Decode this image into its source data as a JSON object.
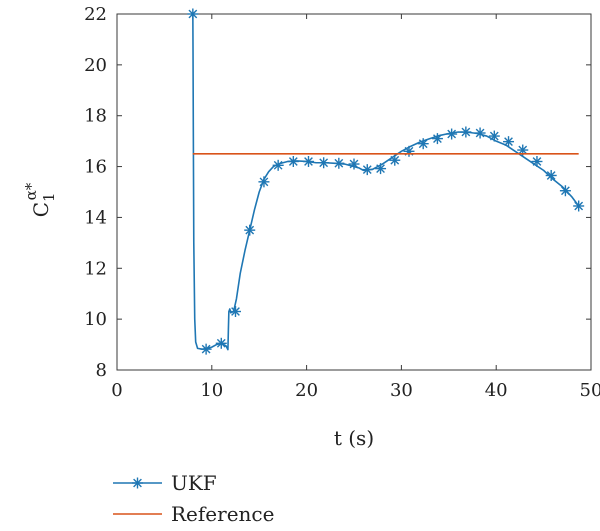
{
  "chart_data": {
    "type": "line",
    "xlabel": "t (s)",
    "ylabel": "C",
    "ylabel_subscript": "1",
    "ylabel_superscript": "α*",
    "xlim": [
      0,
      50
    ],
    "ylim": [
      8,
      22
    ],
    "xticks": [
      0,
      10,
      20,
      30,
      40,
      50
    ],
    "yticks": [
      8,
      10,
      12,
      14,
      16,
      18,
      20,
      22
    ],
    "grid": false,
    "legend_position": "bottom-left, below plot",
    "series": [
      {
        "name": "UKF",
        "color": "#1f77b4",
        "marker": "asterisk",
        "x": [
          8.0,
          8.02,
          8.05,
          8.1,
          8.2,
          8.3,
          8.5,
          9.0,
          9.5,
          10.0,
          10.5,
          11.0,
          11.5,
          11.7,
          11.75,
          11.8,
          11.9,
          12.0,
          12.3,
          12.6,
          13.0,
          13.5,
          14.0,
          14.5,
          15.0,
          15.5,
          16.0,
          16.5,
          17.0,
          18.0,
          19.0,
          20.0,
          21.0,
          22.0,
          23.0,
          24.0,
          25.0,
          25.5,
          26.0,
          26.5,
          27.0,
          27.5,
          28.0,
          29.0,
          30.0,
          31.0,
          32.0,
          33.0,
          34.0,
          35.0,
          36.0,
          37.0,
          38.0,
          39.0,
          40.0,
          41.0,
          42.0,
          43.0,
          44.0,
          45.0,
          46.0,
          47.0,
          48.0,
          48.7
        ],
        "values": [
          22.0,
          20.5,
          17.5,
          13.0,
          10.0,
          9.1,
          8.85,
          8.82,
          8.85,
          8.9,
          9.0,
          9.05,
          8.95,
          8.8,
          9.6,
          10.3,
          10.4,
          10.25,
          10.3,
          10.8,
          11.8,
          12.7,
          13.5,
          14.3,
          15.0,
          15.5,
          15.8,
          16.0,
          16.1,
          16.2,
          16.22,
          16.2,
          16.15,
          16.15,
          16.13,
          16.1,
          16.0,
          15.95,
          15.85,
          15.87,
          15.9,
          16.0,
          16.1,
          16.35,
          16.6,
          16.8,
          16.97,
          17.1,
          17.22,
          17.3,
          17.36,
          17.35,
          17.3,
          17.2,
          17.0,
          16.85,
          16.6,
          16.35,
          16.1,
          15.85,
          15.5,
          15.2,
          14.8,
          14.45
        ],
        "marker_x": [
          8.0,
          9.4,
          11.0,
          12.5,
          14.0,
          15.5,
          17.0,
          18.6,
          20.2,
          21.8,
          23.4,
          25.0,
          26.4,
          27.8,
          29.3,
          30.8,
          32.3,
          33.8,
          35.3,
          36.8,
          38.3,
          39.8,
          41.3,
          42.8,
          44.3,
          45.8,
          47.3,
          48.7
        ],
        "marker_y": [
          22.0,
          8.82,
          9.05,
          10.3,
          13.5,
          15.4,
          16.05,
          16.2,
          16.2,
          16.15,
          16.13,
          16.1,
          15.88,
          15.92,
          16.25,
          16.6,
          16.9,
          17.1,
          17.28,
          17.36,
          17.32,
          17.2,
          16.98,
          16.65,
          16.2,
          15.65,
          15.05,
          14.45
        ]
      },
      {
        "name": "Reference",
        "color": "#d9541a",
        "marker": "none",
        "x": [
          8.0,
          48.7
        ],
        "values": [
          16.5,
          16.5
        ]
      }
    ]
  }
}
